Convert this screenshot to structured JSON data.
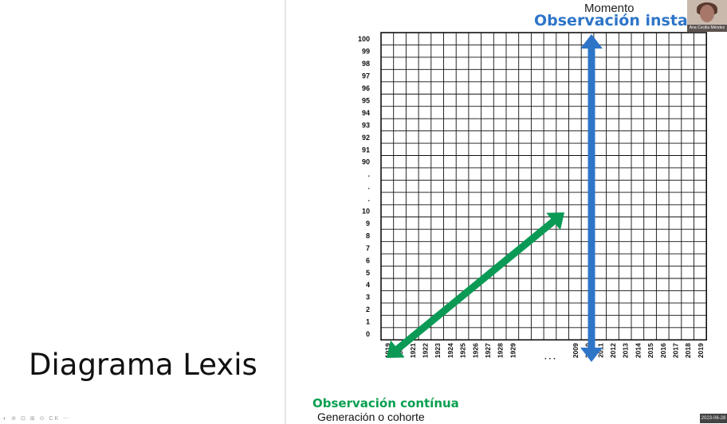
{
  "slide": {
    "title": "Diagrama Lexis",
    "toolbar_text": "◐ ⊘ ⊡ ⊞ ⊙ CK ⋯"
  },
  "diagram": {
    "top_label": "Momento",
    "instant_label": "Observación instant",
    "continuous_label": "Observación contínua",
    "cohort_label": "Generación o cohorte",
    "y_ticks": [
      "100",
      "99",
      "98",
      "97",
      "96",
      "95",
      "94",
      "93",
      "92",
      "91",
      "90",
      ".",
      ".",
      ".",
      "10",
      "9",
      "8",
      "7",
      "6",
      "5",
      "4",
      "3",
      "2",
      "1",
      "0"
    ],
    "x_ticks": [
      "1919",
      "1920",
      "1921",
      "1922",
      "1923",
      "1924",
      "1925",
      "1926",
      "1927",
      "1928",
      "1929",
      "",
      "",
      ". . .",
      "",
      "2009",
      "2010",
      "2011",
      "2012",
      "2013",
      "2014",
      "2015",
      "2016",
      "2017",
      "2018",
      "2019"
    ],
    "colors": {
      "instant": "#2e75c8",
      "continuous": "#0a9a55",
      "grid": "#111111"
    }
  },
  "video": {
    "participant_name": "Ana Cecilia Méndez",
    "date_stamp": "2023-06-28"
  }
}
